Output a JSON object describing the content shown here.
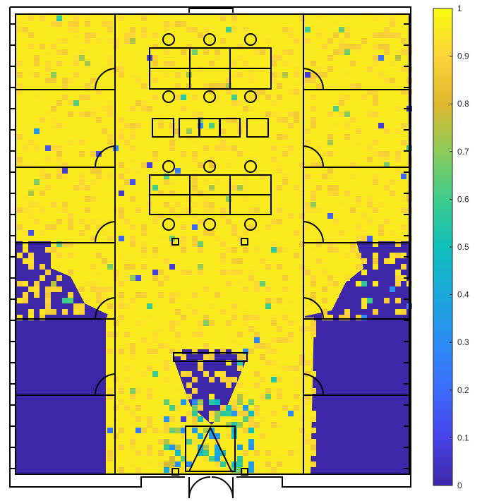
{
  "chart_data": {
    "type": "heatmap",
    "title": "",
    "xlabel": "",
    "ylabel": "",
    "colormap": "parula",
    "value_range": [
      0,
      1
    ],
    "colorbar": {
      "ticks": [
        0,
        0.1,
        0.2,
        0.3,
        0.4,
        0.5,
        0.6,
        0.7,
        0.8,
        0.9,
        1
      ],
      "tick_labels": [
        "0",
        "0.1",
        "0.2",
        "0.3",
        "0.4",
        "0.5",
        "0.6",
        "0.7",
        "0.8",
        "0.9",
        "1"
      ],
      "placement": "right"
    },
    "colors": {
      "low": "#3e26a8",
      "mid": "#10bfbc",
      "high": "#f9fb0e",
      "walls": "#000000"
    },
    "regions": [
      {
        "name": "corridor",
        "value": 0.96
      },
      {
        "name": "upper-left rooms",
        "value": 0.97
      },
      {
        "name": "upper-right rooms",
        "value": 0.97
      },
      {
        "name": "lower-left rooms",
        "value": 0.0
      },
      {
        "name": "lower-right rooms",
        "value": 0.0
      },
      {
        "name": "entrance funnel",
        "value": 0.0
      }
    ]
  }
}
